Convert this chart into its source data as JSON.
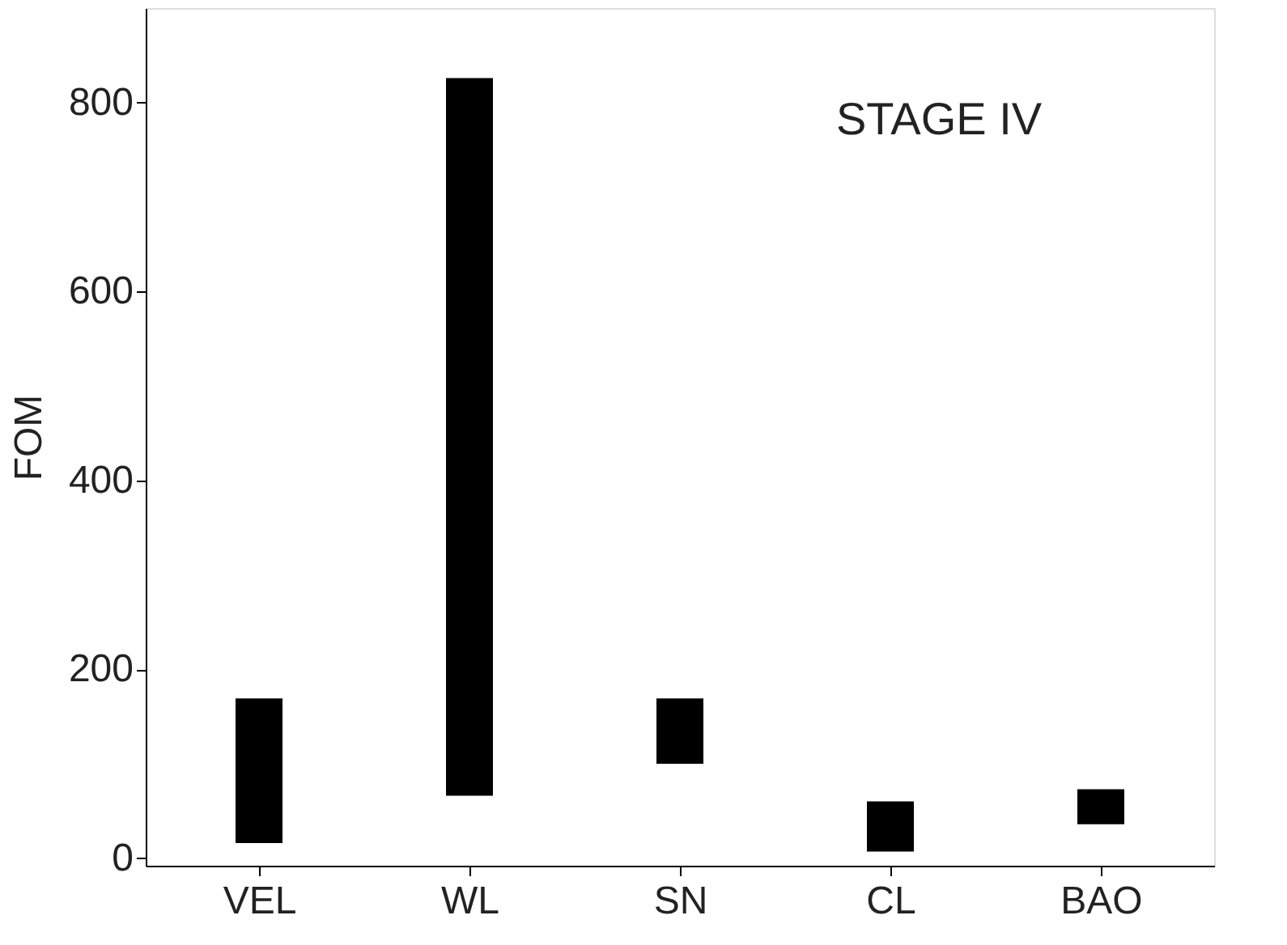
{
  "chart_data": {
    "type": "bar",
    "ylabel": "FOM",
    "categories": [
      "VEL",
      "WL",
      "SN",
      "CL",
      "BAO"
    ],
    "base": [
      16,
      66,
      100,
      7,
      36
    ],
    "values": [
      153,
      760,
      69,
      53,
      37
    ],
    "color": "#000000",
    "ylim": [
      -8,
      900
    ],
    "yticks": [
      0,
      200,
      400,
      600,
      800
    ],
    "annotations": [
      "STAGE IV"
    ],
    "grid": false
  }
}
